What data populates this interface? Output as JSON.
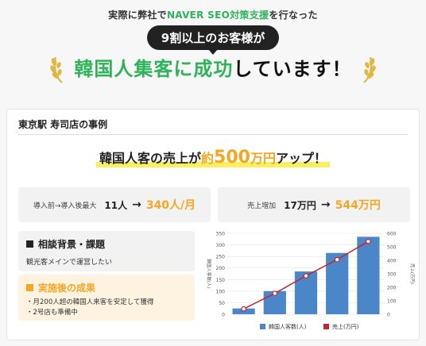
{
  "header": {
    "caption_pre": "実際に弊社で",
    "caption_hl": "NAVER SEO対策支援",
    "caption_post": "を行なった",
    "pill": "9割以上のお客様が",
    "headline_hl": "韓国人集客に成功",
    "headline_post": "しています！"
  },
  "case": {
    "title": "東京駅 寿司店の事例",
    "result_pre": "韓国人客の売上が",
    "result_prefix": "約",
    "result_number": "500",
    "result_unit": "万円",
    "result_post": "アップ！",
    "stat_visitors": {
      "label": "導入前→導入後最大",
      "from": "11人",
      "arrow": "→",
      "to": "340人/月"
    },
    "stat_sales": {
      "label": "売上増加",
      "from": "17万円",
      "arrow": "→",
      "to": "544万円"
    },
    "background": {
      "title": "相談背景・課題",
      "text": "観光客メインで運営したい"
    },
    "outcome": {
      "title": "実施後の成果",
      "items": [
        "・月200人超の韓国人来客を安定して獲得",
        "・2号店も準備中"
      ]
    }
  },
  "colors": {
    "green": "#2fb35a",
    "orange": "#f5a623",
    "bar": "#4a86c8",
    "line": "#c0282e"
  },
  "chart_data": {
    "type": "bar",
    "categories": [
      "1",
      "2",
      "3",
      "4",
      "5"
    ],
    "series": [
      {
        "name": "韓国人客数(人)",
        "type": "bar",
        "axis": "left",
        "values": [
          25,
          100,
          185,
          265,
          335
        ]
      },
      {
        "name": "売上(万円)",
        "type": "line",
        "axis": "right",
        "values": [
          40,
          155,
          285,
          405,
          540
        ]
      }
    ],
    "ylim_left": [
      0,
      350
    ],
    "yticks_left": [
      "0",
      "50",
      "100",
      "150",
      "200",
      "250",
      "300",
      "350"
    ],
    "ylim_right": [
      0,
      600
    ],
    "yticks_right": [
      "0",
      "100",
      "200",
      "300",
      "400",
      "500",
      "600"
    ],
    "ylabel_left": "韓国人客数(人)",
    "ylabel_right": "売上(万円)",
    "grid": true,
    "legend_position": "bottom"
  }
}
